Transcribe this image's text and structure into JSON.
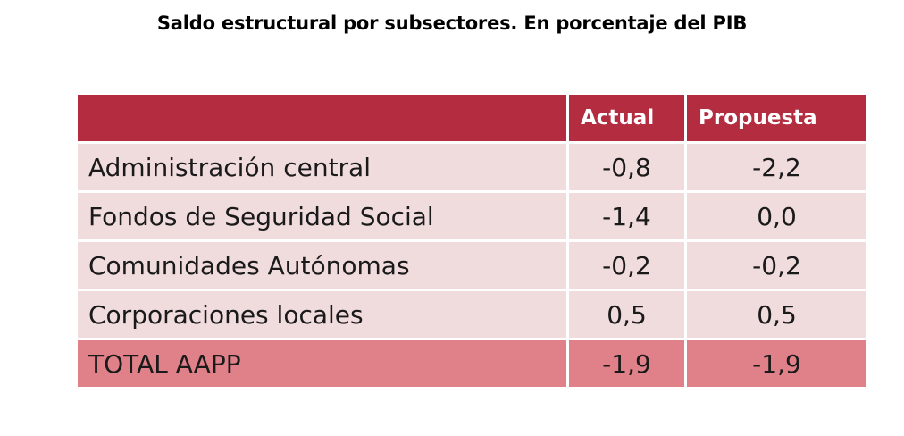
{
  "chart_data": {
    "type": "table",
    "title": "Saldo estructural por subsectores. En porcentaje del PIB",
    "columns": [
      "",
      "Actual",
      "Propuesta"
    ],
    "rows": [
      {
        "label": "Administración central",
        "actual": "-0,8",
        "propuesta": "-2,2"
      },
      {
        "label": "Fondos de Seguridad Social",
        "actual": "-1,4",
        "propuesta": "0,0"
      },
      {
        "label": "Comunidades Autónomas",
        "actual": "-0,2",
        "propuesta": "-0,2"
      },
      {
        "label": "Corporaciones locales",
        "actual": "0,5",
        "propuesta": "0,5"
      }
    ],
    "total": {
      "label": "TOTAL AAPP",
      "actual": "-1,9",
      "propuesta": "-1,9"
    }
  },
  "colors": {
    "header_bg": "#b32c3f",
    "row_bg": "#f0dbdd",
    "total_bg": "#e08089"
  }
}
